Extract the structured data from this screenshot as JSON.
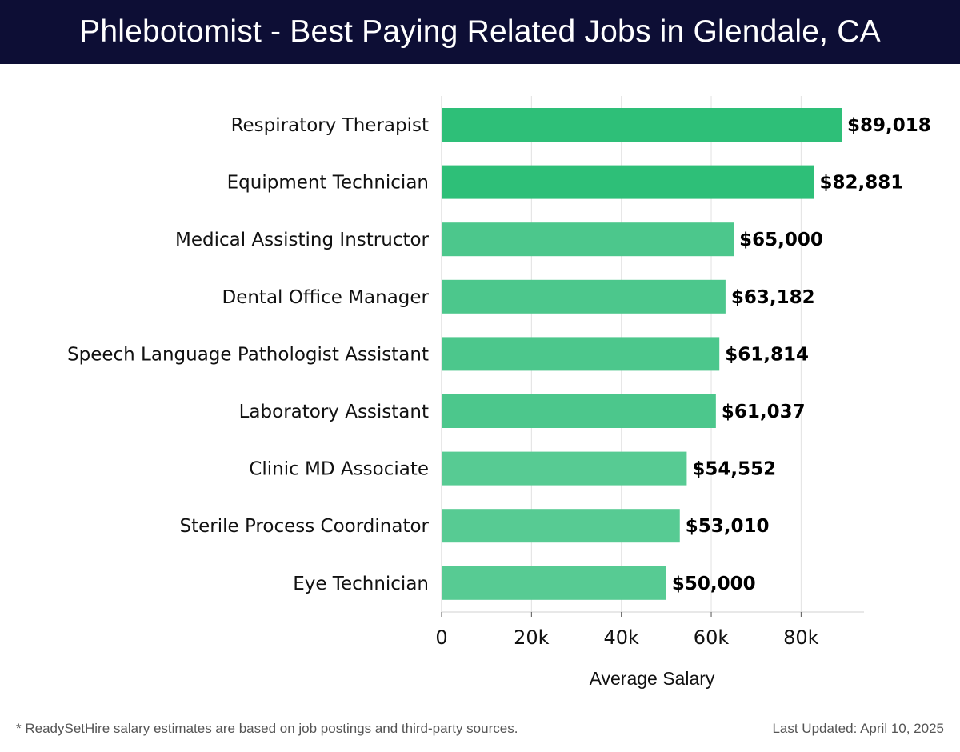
{
  "header": {
    "title": "Phlebotomist - Best Paying Related Jobs in Glendale, CA"
  },
  "footer": {
    "note": "* ReadySetHire salary estimates are based on job postings and third-party sources.",
    "updated": "Last Updated: April 10, 2025"
  },
  "colors": {
    "header_bg": "#0d0e35",
    "bar_top": "#2ebf78",
    "bar_mid": "#4cc78c",
    "bar_low": "#57cb93",
    "grid": "#e2e2e2",
    "axis": "#d0d0d0"
  },
  "chart_data": {
    "type": "bar",
    "orientation": "horizontal",
    "title": "Phlebotomist - Best Paying Related Jobs in Glendale, CA",
    "xlabel": "Average Salary",
    "ylabel": "",
    "xlim": [
      0,
      94000
    ],
    "xticks": [
      0,
      20000,
      40000,
      60000,
      80000
    ],
    "xtick_labels": [
      "0",
      "20k",
      "40k",
      "60k",
      "80k"
    ],
    "grid": true,
    "categories": [
      "Respiratory Therapist",
      "Equipment Technician",
      "Medical Assisting Instructor",
      "Dental Office Manager",
      "Speech Language Pathologist Assistant",
      "Laboratory Assistant",
      "Clinic MD Associate",
      "Sterile Process Coordinator",
      "Eye Technician"
    ],
    "values": [
      89018,
      82881,
      65000,
      63182,
      61814,
      61037,
      54552,
      53010,
      50000
    ],
    "value_labels": [
      "$89,018",
      "$82,881",
      "$65,000",
      "$63,182",
      "$61,814",
      "$61,037",
      "$54,552",
      "$53,010",
      "$50,000"
    ]
  }
}
